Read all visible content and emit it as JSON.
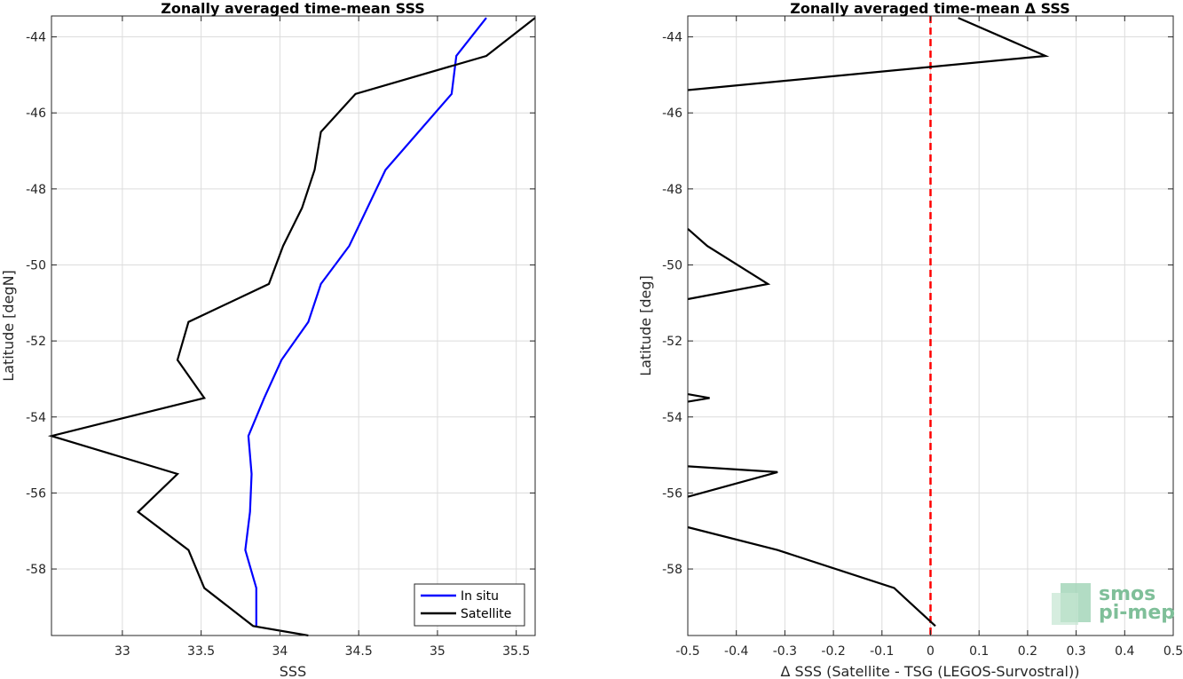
{
  "chart_data": [
    {
      "type": "line",
      "title": "Zonally averaged time-mean SSS",
      "xlabel": "SSS",
      "ylabel": "Latitude [degN]",
      "xlim": [
        32.55,
        35.62
      ],
      "ylim": [
        -59.75,
        -43.45
      ],
      "xticks": [
        33,
        33.5,
        34,
        34.5,
        35,
        35.5
      ],
      "xtick_labels": [
        "33",
        "33.5",
        "34",
        "34.5",
        "35",
        "35.5"
      ],
      "yticks": [
        -44,
        -46,
        -48,
        -50,
        -52,
        -54,
        -56,
        -58
      ],
      "ytick_labels": [
        "-44",
        "-46",
        "-48",
        "-50",
        "-52",
        "-54",
        "-56",
        "-58"
      ],
      "grid": true,
      "legend_position": "bottom-right",
      "series": [
        {
          "name": "In situ",
          "color": "#0000ff",
          "x": [
            35.31,
            35.12,
            35.09,
            34.67,
            34.44,
            34.26,
            34.18,
            34.01,
            33.9,
            33.8,
            33.82,
            33.81,
            33.78,
            33.85,
            33.85
          ],
          "y": [
            -43.5,
            -44.5,
            -45.5,
            -47.5,
            -49.5,
            -50.5,
            -51.5,
            -52.5,
            -53.5,
            -54.5,
            -55.5,
            -56.5,
            -57.5,
            -58.5,
            -59.5
          ]
        },
        {
          "name": "Satellite",
          "color": "#000000",
          "x": [
            35.62,
            35.31,
            34.48,
            34.26,
            34.22,
            34.14,
            34.02,
            33.93,
            33.42,
            33.35,
            33.52,
            32.55,
            33.35,
            33.1,
            33.42,
            33.52,
            33.83,
            34.18
          ],
          "y": [
            -43.5,
            -44.5,
            -45.5,
            -46.5,
            -47.5,
            -48.5,
            -49.5,
            -50.5,
            -51.5,
            -52.5,
            -53.5,
            -54.5,
            -55.5,
            -56.5,
            -57.5,
            -58.5,
            -59.5,
            -59.75
          ]
        }
      ]
    },
    {
      "type": "line",
      "title": "Zonally averaged time-mean Δ SSS",
      "xlabel": "Δ SSS (Satellite - TSG (LEGOS-Survostral))",
      "ylabel": "Latitude [deg]",
      "xlim": [
        -0.5,
        0.5
      ],
      "ylim": [
        -59.75,
        -43.45
      ],
      "xticks": [
        -0.5,
        -0.4,
        -0.3,
        -0.2,
        -0.1,
        0,
        0.1,
        0.2,
        0.3,
        0.4,
        0.5
      ],
      "xtick_labels": [
        "-0.5",
        "-0.4",
        "-0.3",
        "-0.2",
        "-0.1",
        "0",
        "0.1",
        "0.2",
        "0.3",
        "0.4",
        "0.5"
      ],
      "yticks": [
        -44,
        -46,
        -48,
        -50,
        -52,
        -54,
        -56,
        -58
      ],
      "ytick_labels": [
        "-44",
        "-46",
        "-48",
        "-50",
        "-52",
        "-54",
        "-56",
        "-58"
      ],
      "grid": true,
      "reference_line": {
        "x": 0,
        "color": "#ff0000",
        "style": "dashed"
      },
      "series": [
        {
          "color": "#000000",
          "x": [
            0.057,
            0.237,
            -0.5
          ],
          "y": [
            -43.5,
            -44.5,
            -45.4
          ]
        },
        {
          "color": "#000000",
          "x": [
            -0.5,
            -0.46,
            -0.335,
            -0.5
          ],
          "y": [
            -49.05,
            -49.5,
            -50.5,
            -50.9
          ]
        },
        {
          "color": "#000000",
          "x": [
            -0.5,
            -0.455,
            -0.5
          ],
          "y": [
            -53.4,
            -53.5,
            -53.6
          ]
        },
        {
          "color": "#000000",
          "x": [
            -0.5,
            -0.315,
            -0.5
          ],
          "y": [
            -55.3,
            -55.45,
            -56.1
          ]
        },
        {
          "color": "#000000",
          "x": [
            -0.5,
            -0.315,
            -0.075,
            0.01
          ],
          "y": [
            -56.9,
            -57.5,
            -58.5,
            -59.5
          ]
        }
      ]
    }
  ],
  "logo": {
    "line1": "smos",
    "line2": "pi-mep"
  }
}
